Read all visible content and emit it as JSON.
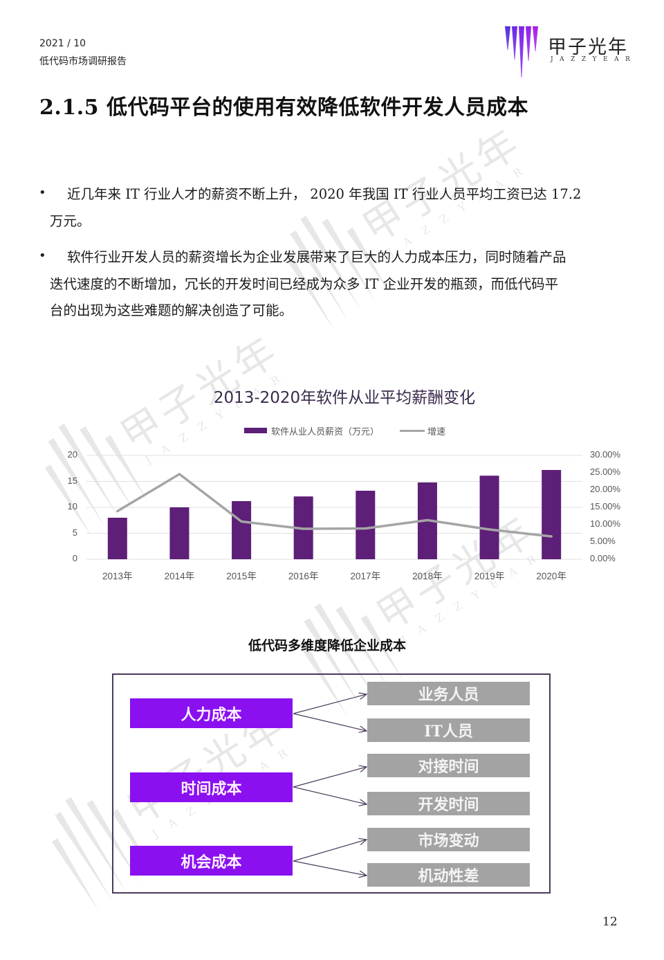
{
  "header": {
    "date": "2021 / 10",
    "report_name": "低代码市场调研报告",
    "logo": {
      "cn": "甲子光年",
      "en": "JAZZYEAR",
      "bar_colors": [
        "#5a2be0",
        "#6a28e6",
        "#7d24ea",
        "#9220ec",
        "#a81ee8"
      ]
    }
  },
  "section": {
    "title": "2.1.5 低代码平台的使用有效降低软件开发人员成本"
  },
  "bullets": [
    {
      "lines": [
        "近几年来 IT 行业人才的薪资不断上升， 2020 年我国 IT 行业人员平均工资已达 17.2",
        "万元。"
      ]
    },
    {
      "lines": [
        "软件行业开发人员的薪资增长为企业发展带来了巨大的人力成本压力，同时随着产品",
        "迭代速度的不断增加，冗长的开发时间已经成为众多 IT 企业开发的瓶颈，而低代码平",
        "台的出现为这些难题的解决创造了可能。"
      ]
    }
  ],
  "bullet_symbol": "•",
  "chart_data": {
    "type": "bar",
    "title": "2013-2020年软件从业平均薪酬变化",
    "categories": [
      "2013年",
      "2014年",
      "2015年",
      "2016年",
      "2017年",
      "2018年",
      "2019年",
      "2020年"
    ],
    "series": [
      {
        "name": "软件从业人员薪资（万元）",
        "type": "bar",
        "axis": "left",
        "color": "#5e1f78",
        "values": [
          8.0,
          10.0,
          11.2,
          12.1,
          13.2,
          14.8,
          16.1,
          17.2
        ]
      },
      {
        "name": "增速",
        "type": "line",
        "axis": "right",
        "color": "#a5a5a5",
        "values": [
          13.9,
          24.6,
          10.9,
          8.8,
          8.9,
          11.3,
          8.6,
          6.6
        ]
      }
    ],
    "y_left": {
      "ticks": [
        "0",
        "5",
        "10",
        "15",
        "20"
      ],
      "range": [
        0,
        20
      ]
    },
    "y_right": {
      "ticks": [
        "0.00%",
        "5.00%",
        "10.00%",
        "15.00%",
        "20.00%",
        "25.00%",
        "30.00%"
      ],
      "range": [
        0,
        30
      ]
    },
    "xlabel": "",
    "ylabel": "",
    "grid": true,
    "legend_position": "top"
  },
  "diagram": {
    "title": "低代码多维度降低企业成本",
    "groups": [
      {
        "label": "人力成本",
        "children": [
          "业务人员",
          "IT人员"
        ]
      },
      {
        "label": "时间成本",
        "children": [
          "对接时间",
          "开发时间"
        ]
      },
      {
        "label": "机会成本",
        "children": [
          "市场变动",
          "机动性差"
        ]
      }
    ],
    "colors": {
      "primary": "#8a10f0",
      "secondary": "#a3a3a3",
      "frame": "#4b3a5a"
    }
  },
  "page_number": "12"
}
